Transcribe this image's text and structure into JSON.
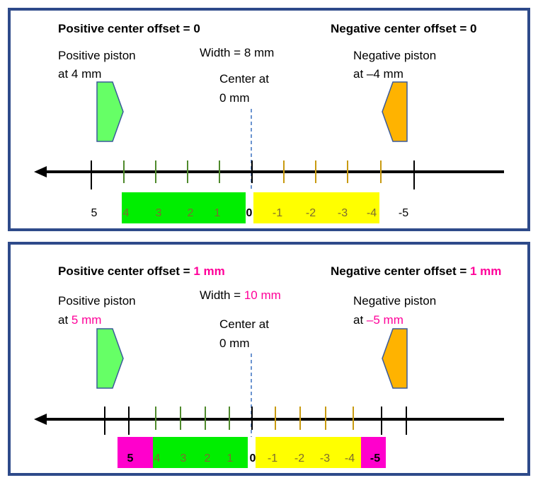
{
  "colors": {
    "frame": "#2e4a8a",
    "positive_piston": "#66ff66",
    "negative_piston": "#ffb300",
    "piston_outline": "#3a5a9a",
    "green_bar": "#00ee00",
    "yellow_bar": "#ffff00",
    "magenta": "#ff00cc",
    "highlight_text": "#ff0099",
    "green_tick": "#4f8a2c",
    "gold_tick": "#c89a10",
    "dim_label": "#7d6c30",
    "center_line": "#3a70c0"
  },
  "panels": [
    {
      "positive_offset_label": "Positive center offset = ",
      "positive_offset_value": "0",
      "negative_offset_label": "Negative center offset = ",
      "negative_offset_value": "0",
      "width_label": "Width = ",
      "width_value": "8 mm",
      "center_line1": "Center at",
      "center_line2": "0 mm",
      "positive_piston_line1": "Positive piston",
      "positive_piston_prefix": "at ",
      "positive_piston_value": "4 mm",
      "negative_piston_line1": "Negative piston",
      "negative_piston_prefix": "at ",
      "negative_piston_value": "–4 mm",
      "scale_labels": [
        "5",
        "4",
        "3",
        "2",
        "1",
        "0",
        "-1",
        "-2",
        "-3",
        "-4",
        "-5"
      ]
    },
    {
      "positive_offset_label": "Positive center offset = ",
      "positive_offset_value": "1 mm",
      "negative_offset_label": "Negative center offset = ",
      "negative_offset_value": "1 mm",
      "width_label": "Width = ",
      "width_value": "10 mm",
      "center_line1": "Center at",
      "center_line2": "0 mm",
      "positive_piston_line1": "Positive piston",
      "positive_piston_prefix": "at ",
      "positive_piston_value": "5 mm",
      "negative_piston_line1": "Negative piston",
      "negative_piston_prefix": "at ",
      "negative_piston_value": "–5 mm",
      "scale_labels": [
        "5",
        "4",
        "3",
        "2",
        "1",
        "0",
        "-1",
        "-2",
        "-3",
        "-4",
        "-5"
      ]
    }
  ]
}
